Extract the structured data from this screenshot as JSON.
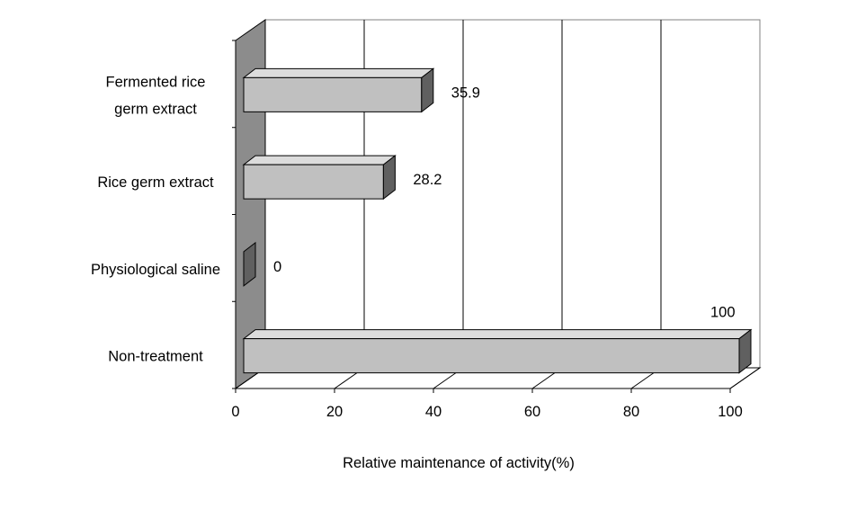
{
  "chart_data": {
    "type": "bar",
    "orientation": "horizontal",
    "style": "3d",
    "categories": [
      [
        "Fermented rice",
        "germ extract"
      ],
      [
        "Rice germ extract"
      ],
      [
        "Physiological saline"
      ],
      [
        "Non-treatment"
      ]
    ],
    "values": [
      35.9,
      28.2,
      0,
      100
    ],
    "data_labels": [
      "35.9",
      "28.2",
      "0",
      "100"
    ],
    "xlabel": "Relative maintenance of activity(%)",
    "xlim": [
      0,
      100
    ],
    "xticks": [
      0,
      20,
      40,
      60,
      80,
      100
    ],
    "grid": "vertical",
    "legend": "none",
    "colors": {
      "bar_face": "#c0c0c0",
      "bar_top": "#dcdcdc",
      "bar_side": "#606060",
      "side_wall": "#8c8c8c",
      "grid": "#000000"
    }
  }
}
